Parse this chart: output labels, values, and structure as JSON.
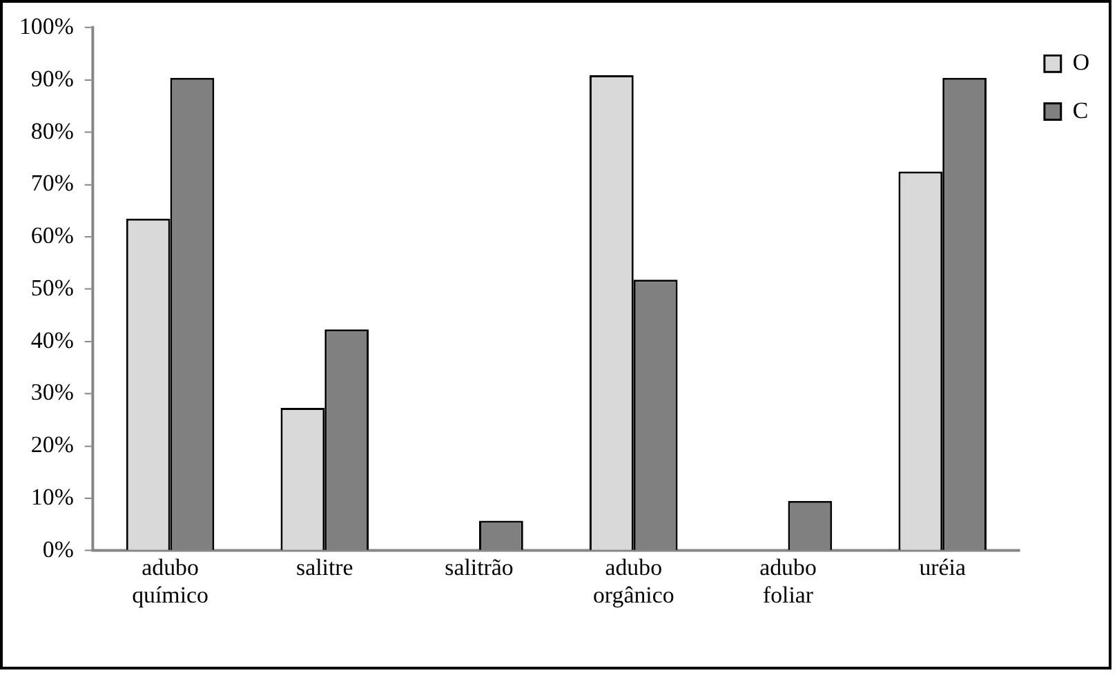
{
  "chart_data": {
    "type": "bar",
    "categories": [
      "adubo químico",
      "salitre",
      "salitrão",
      "adubo orgânico",
      "adubo foliar",
      "uréia"
    ],
    "series": [
      {
        "name": "O",
        "color": "#d9d9d9",
        "values": [
          63.5,
          27.3,
          0,
          90.9,
          0,
          72.5
        ]
      },
      {
        "name": "C",
        "color": "#808080",
        "values": [
          90.4,
          42.3,
          5.7,
          51.8,
          9.5,
          90.4
        ]
      }
    ],
    "ylim": [
      0,
      100
    ],
    "yticks": [
      {
        "value": 0,
        "label": "0%"
      },
      {
        "value": 10,
        "label": "10%"
      },
      {
        "value": 20,
        "label": "20%"
      },
      {
        "value": 30,
        "label": "30%"
      },
      {
        "value": 40,
        "label": "40%"
      },
      {
        "value": 50,
        "label": "50%"
      },
      {
        "value": 60,
        "label": "60%"
      },
      {
        "value": 70,
        "label": "70%"
      },
      {
        "value": 80,
        "label": "80%"
      },
      {
        "value": 90,
        "label": "90%"
      },
      {
        "value": 100,
        "label": "100%"
      }
    ],
    "grid": false,
    "legend": "right"
  }
}
